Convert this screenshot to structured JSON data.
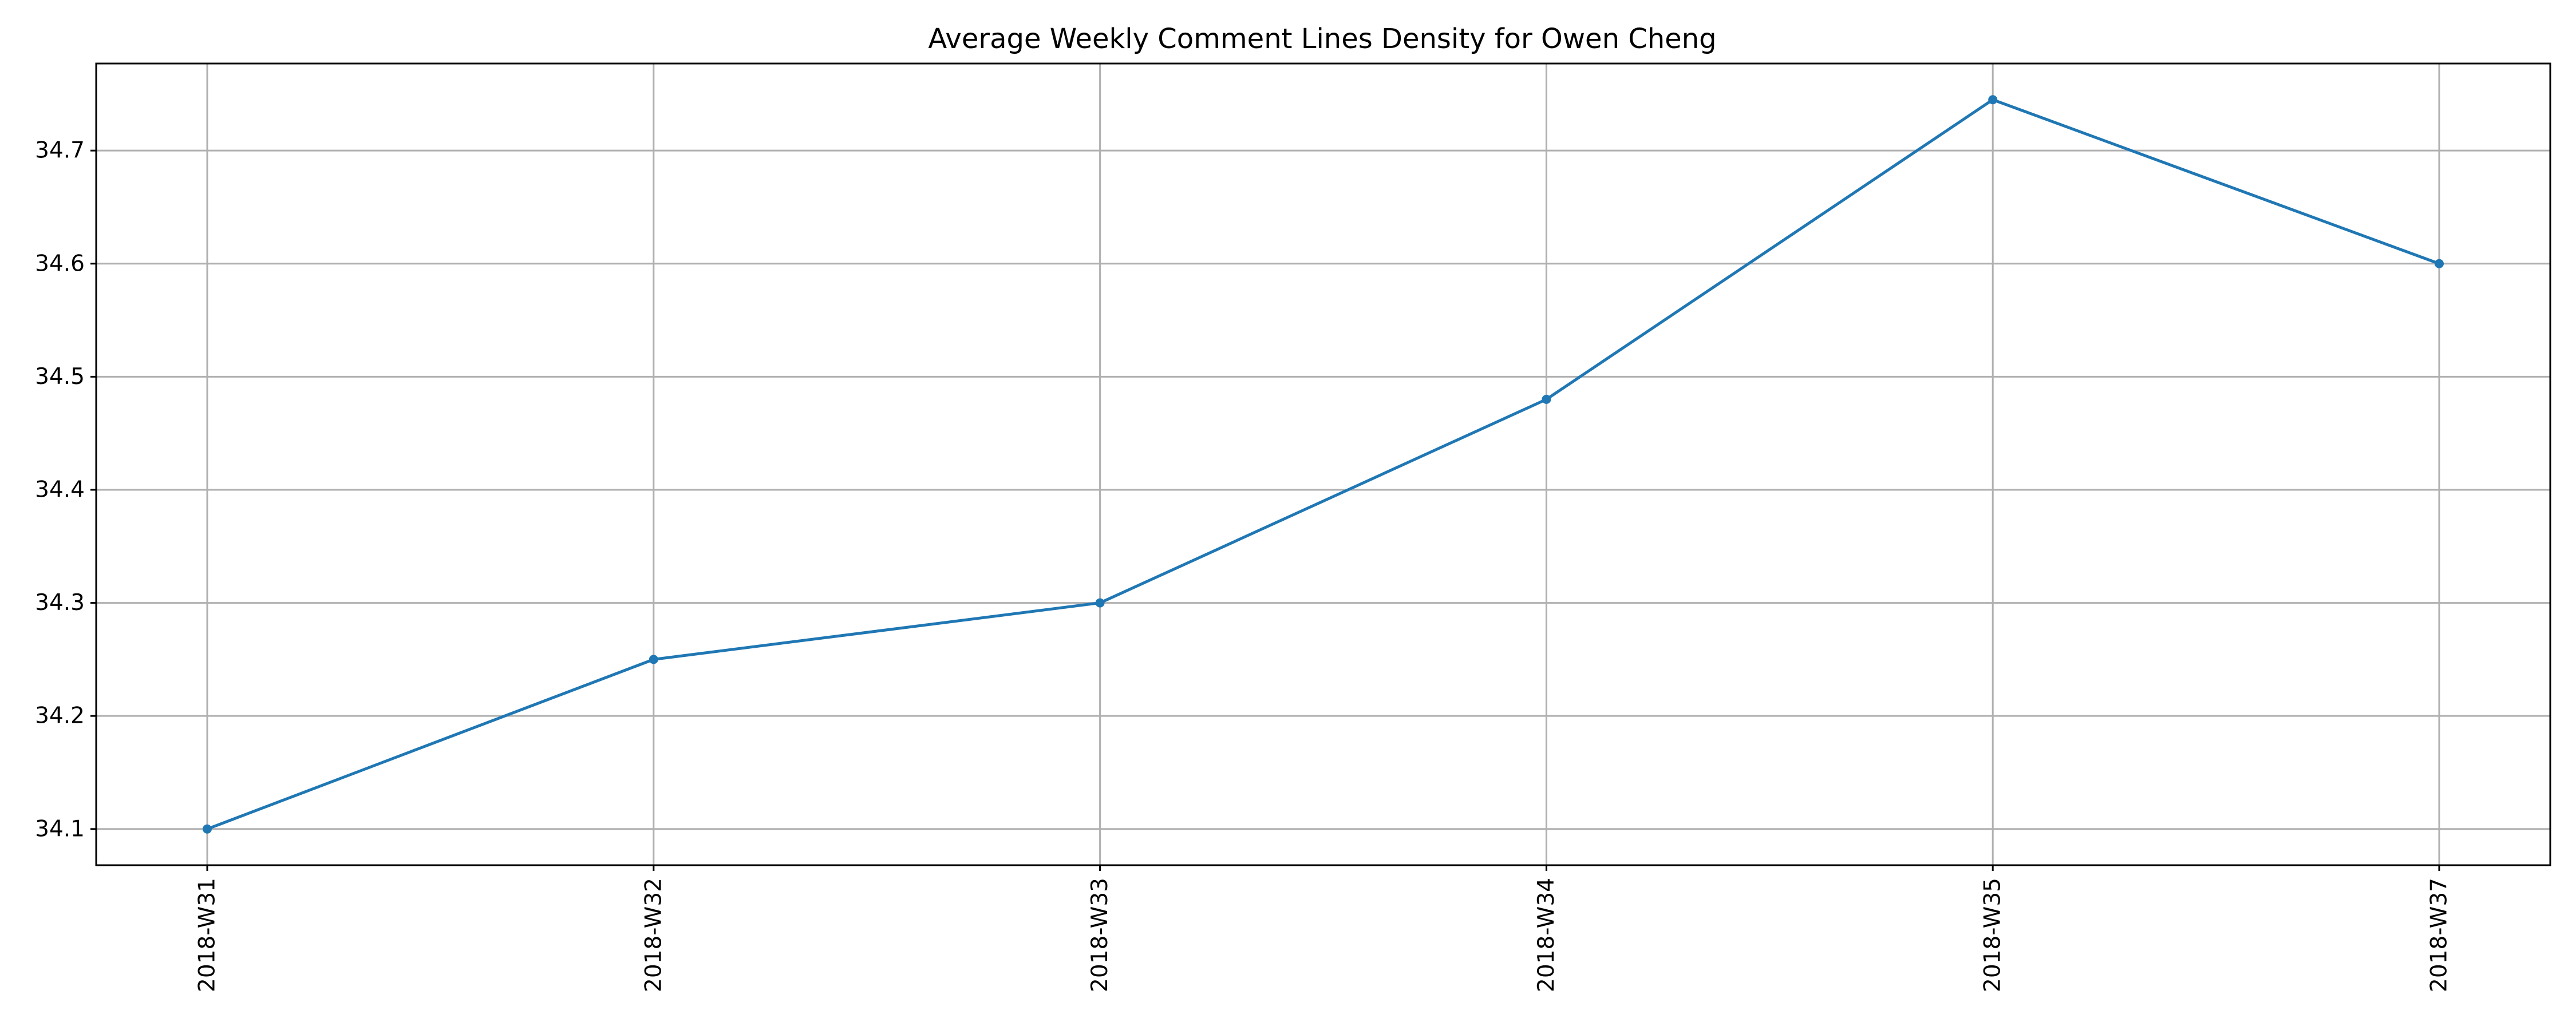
{
  "chart_data": {
    "type": "line",
    "title": "Average Weekly Comment Lines Density for Owen Cheng",
    "xlabel": "",
    "ylabel": "",
    "categories": [
      "2018-W31",
      "2018-W32",
      "2018-W33",
      "2018-W34",
      "2018-W35",
      "2018-W37"
    ],
    "series": [
      {
        "values": [
          34.1,
          34.25,
          34.3,
          34.48,
          34.745,
          34.6
        ],
        "color": "#1f77b4",
        "marker": "circle"
      }
    ],
    "ylim": [
      34.068,
      34.777
    ],
    "yticks": [
      34.1,
      34.2,
      34.3,
      34.4,
      34.5,
      34.6,
      34.7
    ],
    "ytick_labels": [
      "34.1",
      "34.2",
      "34.3",
      "34.4",
      "34.5",
      "34.6",
      "34.7"
    ],
    "grid": true,
    "legend": "none"
  }
}
